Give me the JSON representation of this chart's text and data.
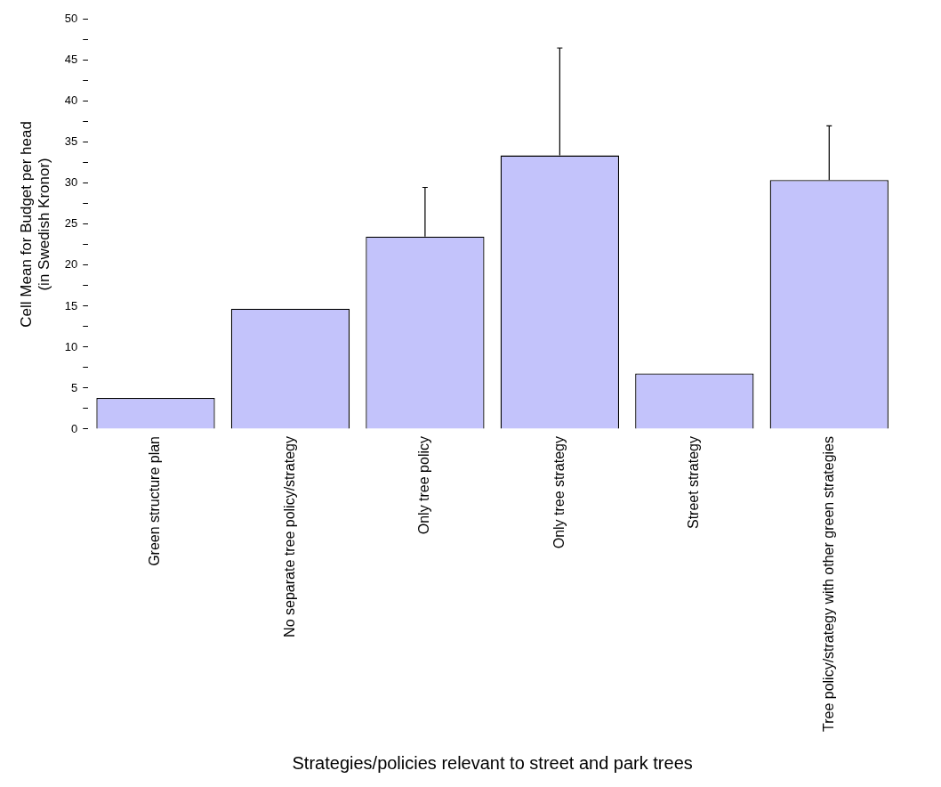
{
  "chart_data": {
    "type": "bar",
    "xlabel": "Strategies/policies relevant to street and park trees",
    "ylabel": "Cell Mean for Budget per head\n(in Swedish Kronor)",
    "categories": [
      "Green structure plan",
      "No separate tree policy/strategy",
      "Only tree policy",
      "Only tree strategy",
      "Street strategy",
      "Tree policy/strategy with other green strategies"
    ],
    "values": [
      3.8,
      14.7,
      23.5,
      33.4,
      6.8,
      30.4
    ],
    "errors": [
      null,
      null,
      [
        23.5,
        29.5
      ],
      [
        33.4,
        46.5
      ],
      null,
      [
        30.4,
        37.0
      ]
    ],
    "color": "#c3c3fb",
    "ylim": [
      0,
      50
    ],
    "yticks": [
      0,
      {
        "value": 2.5,
        "label": null
      },
      5,
      {
        "value": 7.5,
        "label": null
      },
      10,
      {
        "value": 12.5,
        "label": null
      },
      15,
      {
        "value": 17.5,
        "label": null
      },
      20,
      {
        "value": 22.5,
        "label": null
      },
      25,
      {
        "value": 27.5,
        "label": null
      },
      30,
      {
        "value": 32.5,
        "label": null
      },
      35,
      {
        "value": 37.5,
        "label": null
      },
      40,
      {
        "value": 42.5,
        "label": null
      },
      45,
      {
        "value": 47.5,
        "label": null
      },
      50
    ],
    "grid": false,
    "legend": false
  }
}
